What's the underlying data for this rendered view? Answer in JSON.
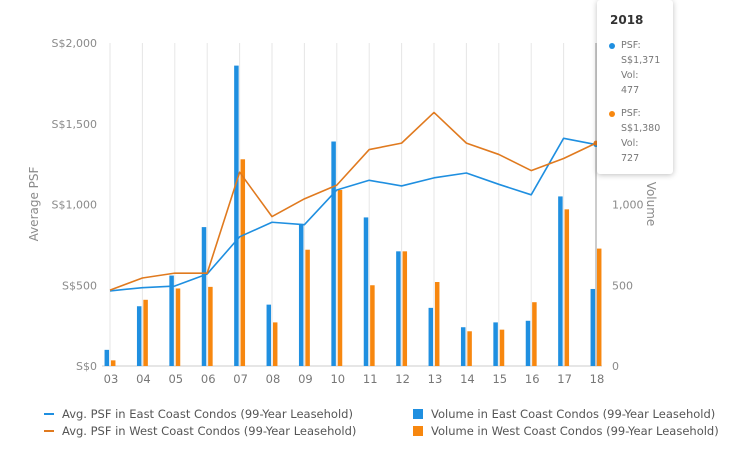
{
  "chart_data": {
    "type": "bar",
    "categories": [
      "03",
      "04",
      "05",
      "06",
      "07",
      "08",
      "09",
      "10",
      "11",
      "12",
      "13",
      "14",
      "15",
      "16",
      "17",
      "18"
    ],
    "y_left": {
      "label": "Average PSF",
      "ticks": [
        "S$0",
        "S$500",
        "S$1,000",
        "S$1,500",
        "S$2,000"
      ],
      "range": [
        0,
        2000
      ]
    },
    "y_right": {
      "label": "Volume",
      "ticks": [
        "0",
        "500",
        "1,000"
      ],
      "range": [
        0,
        2000
      ]
    },
    "bar_series": [
      {
        "name": "Volume in East Coast Condos (99-Year Leasehold)",
        "color": "#1f8fe0",
        "values": [
          100,
          370,
          560,
          860,
          1860,
          380,
          880,
          1390,
          920,
          710,
          360,
          240,
          270,
          280,
          1050,
          477
        ]
      },
      {
        "name": "Volume in West Coast Condos (99-Year Leasehold)",
        "color": "#f7870f",
        "values": [
          35,
          410,
          480,
          490,
          1280,
          270,
          720,
          1090,
          500,
          710,
          520,
          215,
          225,
          395,
          970,
          727
        ]
      }
    ],
    "line_series": [
      {
        "name": "Avg. PSF in East Coast Condos (99-Year Leasehold)",
        "color": "#1f8fe0",
        "values": [
          465,
          485,
          495,
          570,
          800,
          890,
          875,
          1090,
          1150,
          1115,
          1165,
          1195,
          1125,
          1060,
          1410,
          1371
        ]
      },
      {
        "name": "Avg. PSF in West Coast Condos (99-Year Leasehold)",
        "color": "#e07a1f",
        "values": [
          470,
          545,
          575,
          575,
          1200,
          925,
          1035,
          1120,
          1340,
          1380,
          1570,
          1380,
          1310,
          1210,
          1285,
          1380
        ]
      }
    ],
    "grid": "vertical",
    "legend_position": "bottom"
  },
  "tooltip": {
    "year": "2018",
    "entries": [
      {
        "color": "#1f8fe0",
        "lines": [
          "PSF:",
          "S$1,371",
          "Vol:",
          "477"
        ]
      },
      {
        "color": "#f7870f",
        "lines": [
          "PSF:",
          "S$1,380",
          "Vol:",
          "727"
        ]
      }
    ]
  }
}
